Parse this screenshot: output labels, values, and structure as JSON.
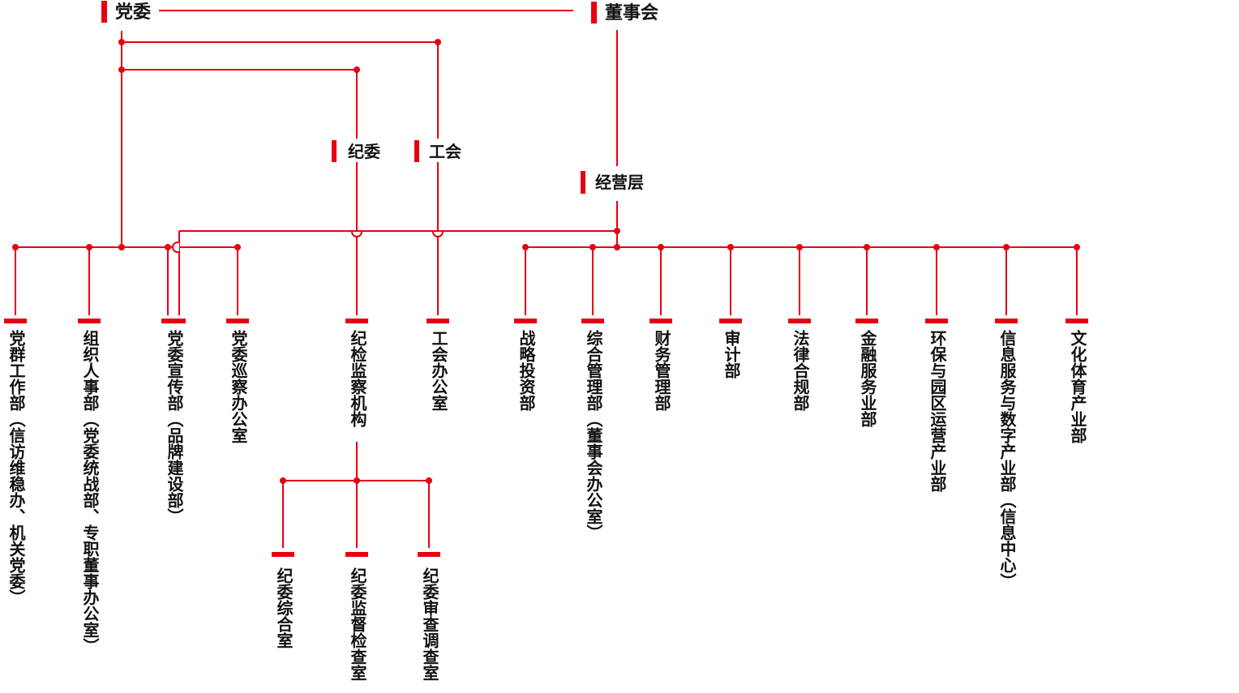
{
  "colors": {
    "accent": "#e60012",
    "text": "#111111",
    "background": "#ffffff"
  },
  "org_chart": {
    "top_level": [
      {
        "label": "党委"
      },
      {
        "label": "董事会"
      }
    ],
    "mid_level": [
      {
        "label": "纪委"
      },
      {
        "label": "工会"
      },
      {
        "label": "经营层"
      }
    ],
    "departments": [
      {
        "label": "党群工作部（信访维稳办、机关党委）"
      },
      {
        "label": "组织人事部（党委统战部、专职董事办公室）"
      },
      {
        "label": "党委宣传部（品牌建设部）"
      },
      {
        "label": "党委巡察办公室"
      },
      {
        "label": "纪检监察机构"
      },
      {
        "label": "工会办公室"
      },
      {
        "label": "战略投资部"
      },
      {
        "label": "综合管理部（董事会办公室）"
      },
      {
        "label": "财务管理部"
      },
      {
        "label": "审计部"
      },
      {
        "label": "法律合规部"
      },
      {
        "label": "金融服务业部"
      },
      {
        "label": "环保与园区运营产业部"
      },
      {
        "label": "信息服务与数字产业部（信息中心）"
      },
      {
        "label": "文化体育产业部"
      }
    ],
    "discipline_offices": [
      {
        "label": "纪委综合室"
      },
      {
        "label": "纪委监督检查室"
      },
      {
        "label": "纪委审查调查室"
      }
    ]
  }
}
